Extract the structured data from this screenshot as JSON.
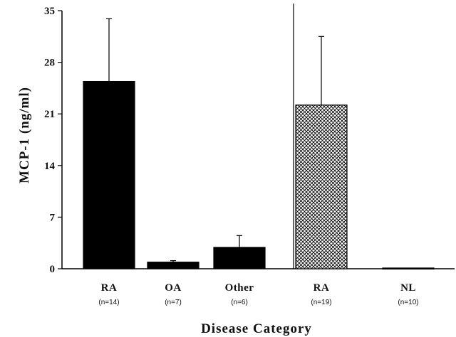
{
  "chart_data": {
    "type": "bar",
    "categories": [
      "RA",
      "OA",
      "Other",
      "RA",
      "NL"
    ],
    "n_labels": [
      "(n=14)",
      "(n=7)",
      "(n=6)",
      "(n=19)",
      "(n=10)"
    ],
    "values": [
      25.4,
      0.9,
      2.9,
      22.2,
      0.1
    ],
    "errors": [
      8.5,
      0.2,
      1.6,
      9.3,
      0.0
    ],
    "bar_styles": [
      "solid",
      "solid",
      "solid",
      "crosshatch",
      "solid"
    ],
    "xlabel": "Disease Category",
    "ylabel": "MCP-1 (ng/ml)",
    "ylim": [
      0,
      35
    ],
    "yticks": [
      0,
      7,
      14,
      21,
      28,
      35
    ],
    "divider_after_index": 2,
    "grid": false,
    "colors": {
      "bar": "#000000",
      "hatch_bg": "#ffffff",
      "axis": "#000000"
    }
  }
}
